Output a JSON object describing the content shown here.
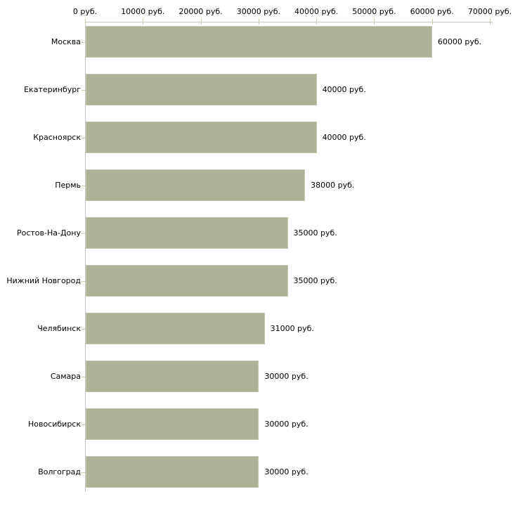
{
  "chart_data": {
    "type": "bar",
    "orientation": "horizontal",
    "title": "",
    "xlabel": "",
    "ylabel": "",
    "grid": false,
    "legend": null,
    "categories": [
      "Москва",
      "Екатеринбург",
      "Красноярск",
      "Пермь",
      "Ростов-На-Дону",
      "Нижний Новгород",
      "Челябинск",
      "Самара",
      "Новосибирск",
      "Волгоград"
    ],
    "values": [
      60000,
      40000,
      40000,
      38000,
      35000,
      35000,
      31000,
      30000,
      30000,
      30000
    ],
    "value_labels": [
      "60000 руб.",
      "40000 руб.",
      "40000 руб.",
      "38000 руб.",
      "35000 руб.",
      "35000 руб.",
      "31000 руб.",
      "30000 руб.",
      "30000 руб.",
      "30000 руб."
    ],
    "x_axis": {
      "position": "top",
      "min": 0,
      "max": 70000,
      "ticks": [
        0,
        10000,
        20000,
        30000,
        40000,
        50000,
        60000,
        70000
      ],
      "tick_labels": [
        "0 руб.",
        "10000 руб.",
        "20000 руб.",
        "30000 руб.",
        "40000 руб.",
        "50000 руб.",
        "60000 руб.",
        "70000 руб."
      ]
    },
    "colors": {
      "bar": "#acb298",
      "bar_border": "#c1c7ac",
      "axis_line": "#c6c6c6",
      "tick": "#c9c9a3",
      "text": "#000000",
      "background": "#ffffff"
    }
  }
}
